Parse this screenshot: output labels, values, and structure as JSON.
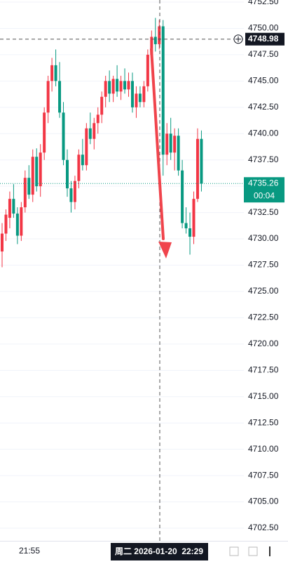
{
  "chart_data": {
    "type": "candlestick",
    "categories": [
      null,
      null,
      null,
      null,
      null,
      null,
      null,
      "21:55",
      null,
      null,
      null,
      null,
      null,
      null,
      null,
      null,
      null,
      null,
      null,
      null,
      null,
      null,
      null,
      null,
      null,
      null,
      null,
      null,
      null,
      null,
      null,
      null,
      null,
      null,
      null,
      null,
      null,
      null,
      null,
      null,
      null,
      null,
      null,
      null,
      null,
      null,
      null,
      null,
      null,
      null,
      null,
      null,
      null
    ],
    "open": [
      4728.8,
      4730.5,
      4732.0,
      4733.8,
      4732.4,
      4730.3,
      4733.0,
      4735.8,
      4734.2,
      4737.8,
      4735.0,
      4738.2,
      4742.0,
      4745.0,
      4746.5,
      4745.0,
      4742.0,
      4737.5,
      4734.8,
      4733.5,
      4735.5,
      4738.0,
      4737.0,
      4740.5,
      4739.5,
      4741.0,
      4741.8,
      4743.5,
      4745.0,
      4743.8,
      4745.2,
      4744.0,
      4745.0,
      4744.2,
      4745.0,
      4742.5,
      4743.8,
      4743.0,
      4744.5,
      4747.5,
      4749.2,
      4748.5,
      4750.2,
      4738.0,
      4740.0,
      4738.2,
      4739.8,
      4736.5,
      4731.5,
      4731.0,
      4730.2,
      4733.8,
      4739.5
    ],
    "high": [
      4731.5,
      4732.8,
      4734.5,
      4735.2,
      4733.0,
      4733.5,
      4736.5,
      4737.0,
      4738.5,
      4738.6,
      4739.0,
      4742.5,
      4745.5,
      4747.2,
      4748.0,
      4746.8,
      4743.0,
      4738.5,
      4735.5,
      4736.0,
      4738.5,
      4739.5,
      4741.0,
      4742.0,
      4741.5,
      4742.5,
      4744.0,
      4745.5,
      4746.0,
      4745.5,
      4746.5,
      4745.5,
      4746.2,
      4745.8,
      4745.8,
      4744.5,
      4744.5,
      4745.0,
      4748.0,
      4749.8,
      4751.0,
      4750.8,
      4750.8,
      4741.0,
      4741.5,
      4740.5,
      4740.5,
      4737.5,
      4733.0,
      4732.5,
      4734.5,
      4740.5,
      4740.3
    ],
    "low": [
      4727.3,
      4729.8,
      4731.0,
      4732.0,
      4729.5,
      4729.8,
      4732.5,
      4733.8,
      4733.5,
      4734.5,
      4734.0,
      4737.5,
      4741.0,
      4744.0,
      4744.5,
      4741.5,
      4737.0,
      4734.0,
      4732.5,
      4732.8,
      4734.8,
      4736.5,
      4736.5,
      4739.0,
      4738.5,
      4740.0,
      4741.0,
      4742.5,
      4743.0,
      4743.0,
      4743.5,
      4743.2,
      4743.8,
      4743.5,
      4742.0,
      4741.5,
      4742.5,
      4742.5,
      4744.0,
      4747.0,
      4747.8,
      4748.0,
      4736.0,
      4737.0,
      4737.5,
      4736.5,
      4736.0,
      4731.0,
      4730.5,
      4728.5,
      4729.5,
      4733.5,
      4734.5
    ],
    "close": [
      4730.5,
      4732.3,
      4733.8,
      4732.4,
      4730.3,
      4733.0,
      4735.8,
      4734.2,
      4737.8,
      4735.0,
      4738.2,
      4742.0,
      4745.0,
      4746.5,
      4745.0,
      4742.0,
      4737.5,
      4734.8,
      4733.5,
      4735.5,
      4738.0,
      4737.0,
      4740.5,
      4739.5,
      4741.0,
      4741.8,
      4743.5,
      4745.0,
      4743.8,
      4745.2,
      4744.0,
      4745.0,
      4744.2,
      4745.0,
      4742.5,
      4743.8,
      4743.0,
      4744.5,
      4747.5,
      4749.2,
      4748.5,
      4750.2,
      4738.0,
      4740.0,
      4738.2,
      4739.8,
      4736.5,
      4731.5,
      4731.0,
      4730.2,
      4733.8,
      4739.5,
      4735.26
    ],
    "up_color": "#f23645",
    "down_color": "#089981",
    "ylim": [
      4701.3,
      4752.7
    ],
    "yticks": [
      {
        "value": 4702.5,
        "label": "4702.50"
      },
      {
        "value": 4705,
        "label": "4705.00"
      },
      {
        "value": 4707.5,
        "label": "4707.50"
      },
      {
        "value": 4710,
        "label": "4710.00"
      },
      {
        "value": 4712.5,
        "label": "4712.50"
      },
      {
        "value": 4715,
        "label": "4715.00"
      },
      {
        "value": 4717.5,
        "label": "4717.50"
      },
      {
        "value": 4720,
        "label": "4720.00"
      },
      {
        "value": 4722.5,
        "label": "4722.50"
      },
      {
        "value": 4725,
        "label": "4725.00"
      },
      {
        "value": 4727.5,
        "label": "4727.50"
      },
      {
        "value": 4730,
        "label": "4730.00"
      },
      {
        "value": 4732.5,
        "label": "4732.50"
      },
      {
        "value": 4735,
        "label": "4735.00"
      },
      {
        "value": 4737.5,
        "label": "4737.50"
      },
      {
        "value": 4740,
        "label": "4740.00"
      },
      {
        "value": 4742.5,
        "label": "4742.50"
      },
      {
        "value": 4745,
        "label": "4745.00"
      },
      {
        "value": 4747.5,
        "label": "4747.50"
      },
      {
        "value": 4750,
        "label": "4750.00"
      },
      {
        "value": 4752.5,
        "label": "4752.50"
      }
    ],
    "grid": true,
    "last_price": 4735.26,
    "countdown": "00:04",
    "crosshair_price": 4748.98,
    "crosshair_time": "周二 2026-01-20  22:29"
  }
}
